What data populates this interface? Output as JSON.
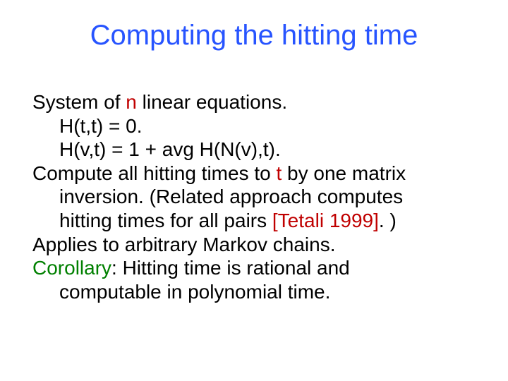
{
  "colors": {
    "title": "#2754ff",
    "body": "#000000",
    "accent_red": "#c00000",
    "accent_green": "#008000",
    "background": "#ffffff"
  },
  "typography": {
    "title_fontsize": 40,
    "body_fontsize": 28,
    "font_family": "Arial"
  },
  "title": "Computing the hitting time",
  "lines": {
    "l1a": "System of ",
    "l1b": "n",
    "l1c": " linear equations.",
    "l2": "H(t,t) = 0.",
    "l3": "H(v,t) = 1 + avg H(N(v),t).",
    "l4a": "Compute all hitting times to ",
    "l4b": "t",
    "l4c": " by one matrix",
    "l5": "inversion. (Related approach computes",
    "l6a": "hitting times for all pairs ",
    "l6b": "[Tetali 1999]",
    "l6c": ". )",
    "l7": "Applies to arbitrary Markov chains.",
    "l8a": "Corollary",
    "l8b": ": Hitting time is rational and",
    "l9": "computable in polynomial time."
  }
}
